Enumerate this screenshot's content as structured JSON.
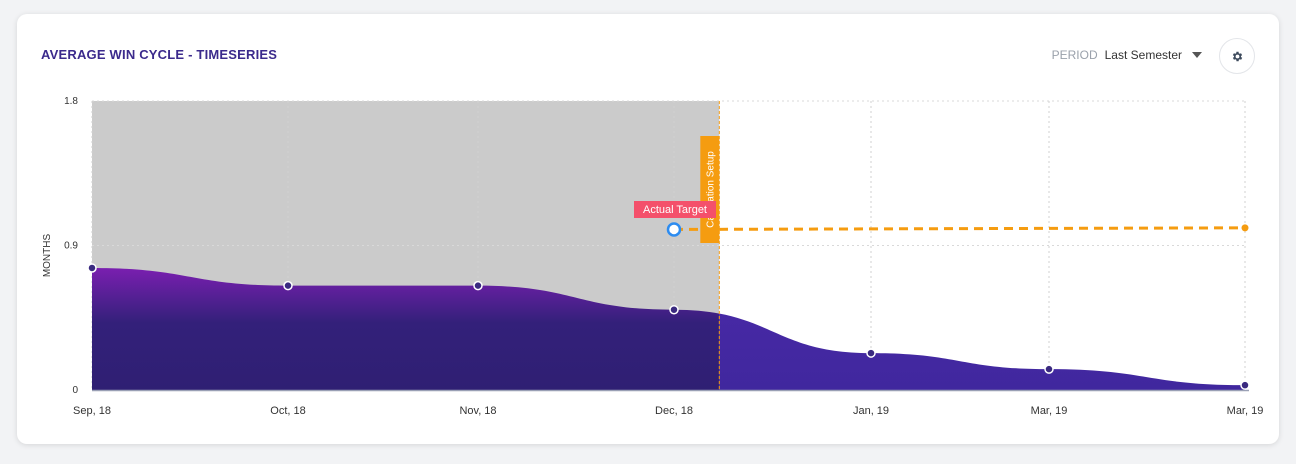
{
  "header": {
    "title": "AVERAGE WIN CYCLE - TIMESERIES",
    "period_label": "PERIOD",
    "period_value": "Last Semester"
  },
  "icons": {
    "settings": "gear-icon",
    "dropdown": "caret-down-icon"
  },
  "colors": {
    "title": "#3b2a8c",
    "setup_region": "#cbcbcb",
    "area_before": "#4a1f8a",
    "area_after": "#462aa3",
    "target_line": "#f59c10",
    "annotation_label": "#f4506b",
    "setup_marker": "#f59c10"
  },
  "chart_data": {
    "type": "area",
    "ylabel": "MONTHS",
    "xlabel": "",
    "ylim": [
      0,
      1.8
    ],
    "yticks": [
      "0",
      "0.9",
      "1.8"
    ],
    "categories": [
      "Sep, 18",
      "Oct, 18",
      "Nov, 18",
      "Dec, 18",
      "Jan, 19",
      "Mar, 19",
      "Mar, 19"
    ],
    "series": [
      {
        "values": [
          0.76,
          0.65,
          0.65,
          0.5,
          0.23,
          0.13,
          0.03
        ]
      }
    ],
    "target": {
      "label": "Actual Target",
      "start_category_index": 3,
      "start_value": 1.0,
      "end_value": 1.01
    },
    "setup_marker": {
      "label": "Calibration Setup",
      "position_index": 3.23
    },
    "grid": true
  }
}
